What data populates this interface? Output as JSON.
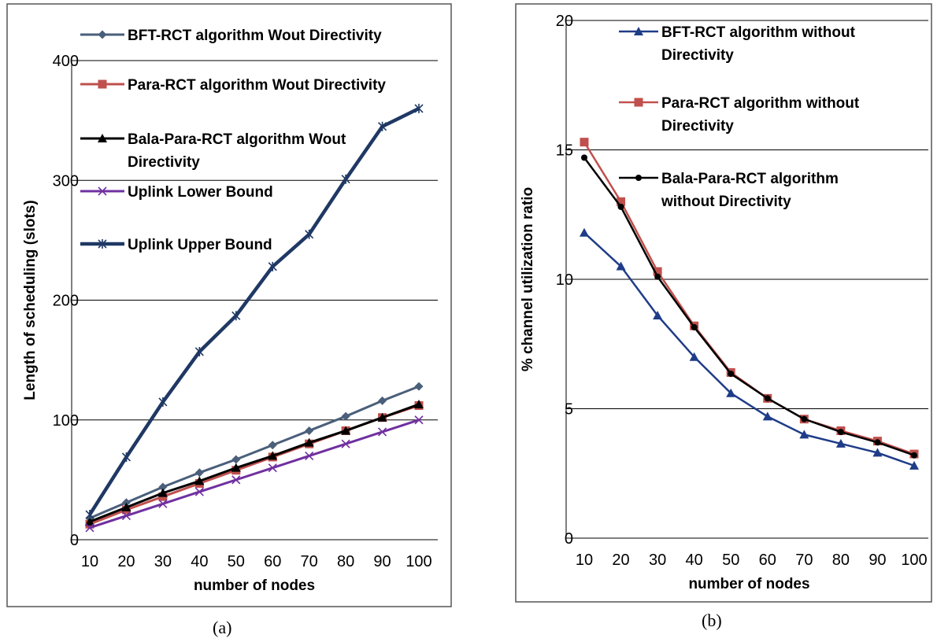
{
  "chart_data": [
    {
      "id": "a",
      "type": "line",
      "xlabel": "number of nodes",
      "ylabel": "Length of scheduling (slots)",
      "categories": [
        "10",
        "20",
        "30",
        "40",
        "50",
        "60",
        "70",
        "80",
        "90",
        "100"
      ],
      "yticks": [
        "0",
        "100",
        "200",
        "300",
        "400"
      ],
      "ylim": [
        0,
        400
      ],
      "grid": true,
      "legend": "top-left, inside plot",
      "series": [
        {
          "name": "BFT-RCT algorithm Wout Directivity",
          "color": "#4a5f7a",
          "marker": "diamond",
          "values": [
            18,
            31,
            44,
            56,
            67,
            79,
            91,
            103,
            116,
            128
          ]
        },
        {
          "name": "Para-RCT algorithm Wout Directivity",
          "color": "#c0504d",
          "marker": "square",
          "values": [
            13,
            25,
            36,
            47,
            58,
            69,
            80,
            91,
            102,
            112
          ]
        },
        {
          "name": "Bala-Para-RCT algorithm Wout Directivity",
          "color": "#000000",
          "marker": "triangle",
          "values": [
            15,
            27,
            39,
            49,
            60,
            70,
            81,
            91,
            102,
            113
          ]
        },
        {
          "name": "Uplink Lower Bound",
          "color": "#7030a0",
          "marker": "x",
          "values": [
            10,
            20,
            30,
            40,
            50,
            60,
            70,
            80,
            90,
            100
          ]
        },
        {
          "name": "Uplink Upper Bound",
          "color": "#1f3864",
          "marker": "star",
          "values": [
            21,
            69,
            115,
            157,
            187,
            228,
            255,
            301,
            345,
            360
          ]
        }
      ],
      "legend_lines": [
        [
          "BFT-RCT algorithm Wout Directivity"
        ],
        [
          "Para-RCT algorithm Wout Directivity"
        ],
        [
          "Bala-Para-RCT algorithm Wout",
          "Directivity"
        ],
        [
          "Uplink Lower Bound"
        ],
        [
          "Uplink Upper Bound"
        ]
      ],
      "caption": "(a)"
    },
    {
      "id": "b",
      "type": "line",
      "xlabel": "number of nodes",
      "ylabel": "% channel utilization ratio",
      "categories": [
        "10",
        "20",
        "30",
        "40",
        "50",
        "60",
        "70",
        "80",
        "90",
        "100"
      ],
      "yticks": [
        "0",
        "5",
        "10",
        "15",
        "20"
      ],
      "ylim": [
        0,
        20
      ],
      "grid": true,
      "legend": "top-right, inside plot",
      "series": [
        {
          "name": "BFT-RCT algorithm without Directivity",
          "color": "#1f3c88",
          "marker": "triangle",
          "values": [
            11.8,
            10.5,
            8.6,
            7.0,
            5.6,
            4.7,
            4.0,
            3.65,
            3.3,
            2.8
          ]
        },
        {
          "name": "Para-RCT algorithm without Directivity",
          "color": "#c0504d",
          "marker": "square",
          "values": [
            15.3,
            13.0,
            10.3,
            8.2,
            6.4,
            5.4,
            4.6,
            4.15,
            3.75,
            3.25
          ]
        },
        {
          "name": "Bala-Para-RCT algorithm without Directivity",
          "color": "#000000",
          "marker": "circle",
          "values": [
            14.7,
            12.8,
            10.1,
            8.15,
            6.35,
            5.4,
            4.6,
            4.1,
            3.7,
            3.2
          ]
        }
      ],
      "legend_lines": [
        [
          "BFT-RCT algorithm without",
          "Directivity"
        ],
        [
          "Para-RCT algorithm without",
          "Directivity"
        ],
        [
          "Bala-Para-RCT algorithm",
          "without Directivity"
        ]
      ],
      "caption": "(b)"
    }
  ]
}
